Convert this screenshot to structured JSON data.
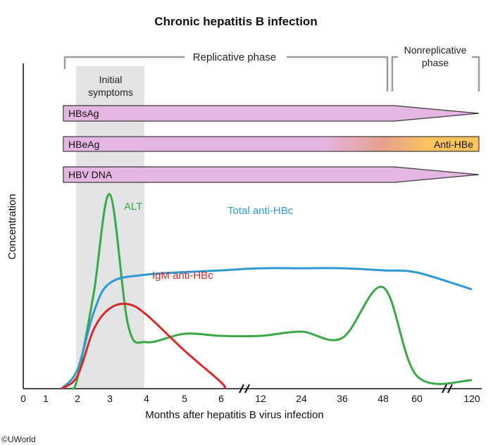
{
  "chart_data": {
    "type": "line",
    "title": "Chronic hepatitis B infection",
    "xlabel": "Months after hepatitis B virus infection",
    "ylabel": "Concentration",
    "x_ticks": [
      "0",
      "1",
      "2",
      "3",
      "4",
      "5",
      "6",
      "12",
      "24",
      "36",
      "48",
      "60",
      "120"
    ],
    "phases": [
      {
        "label": "Replicative phase",
        "from": "1",
        "to": "48"
      },
      {
        "label": "Nonreplicative phase",
        "from": "48",
        "to": "120"
      }
    ],
    "shaded_region": {
      "label": "Initial symptoms",
      "from": "2",
      "to": "4"
    },
    "bars": [
      {
        "label": "HBsAg",
        "end_label": ""
      },
      {
        "label": "HBeAg",
        "end_label": "Anti-HBe"
      },
      {
        "label": "HBV DNA",
        "end_label": ""
      }
    ],
    "series": [
      {
        "name": "ALT",
        "color": "#3aa845",
        "x": [
          "1.8",
          "2",
          "2.5",
          "3",
          "3.5",
          "4",
          "5",
          "6",
          "12",
          "24",
          "36",
          "48",
          "60",
          "120"
        ],
        "y": [
          0,
          0.05,
          0.45,
          0.92,
          0.3,
          0.22,
          0.26,
          0.25,
          0.25,
          0.27,
          0.24,
          0.48,
          0.06,
          0.04
        ]
      },
      {
        "name": "Total anti-HBc",
        "color": "#2d9bd2",
        "x": [
          "1.5",
          "2",
          "2.5",
          "3",
          "4",
          "6",
          "12",
          "24",
          "36",
          "48",
          "60",
          "120"
        ],
        "y": [
          0,
          0.09,
          0.36,
          0.5,
          0.54,
          0.56,
          0.57,
          0.57,
          0.57,
          0.56,
          0.55,
          0.47
        ]
      },
      {
        "name": "IgM anti-HBc",
        "color": "#d42a2a",
        "x": [
          "1.5",
          "2",
          "2.5",
          "3",
          "3.5",
          "4",
          "5",
          "6",
          "6.5"
        ],
        "y": [
          0,
          0.06,
          0.28,
          0.38,
          0.4,
          0.35,
          0.18,
          0.03,
          0
        ]
      }
    ]
  },
  "credit": "©UWorld"
}
